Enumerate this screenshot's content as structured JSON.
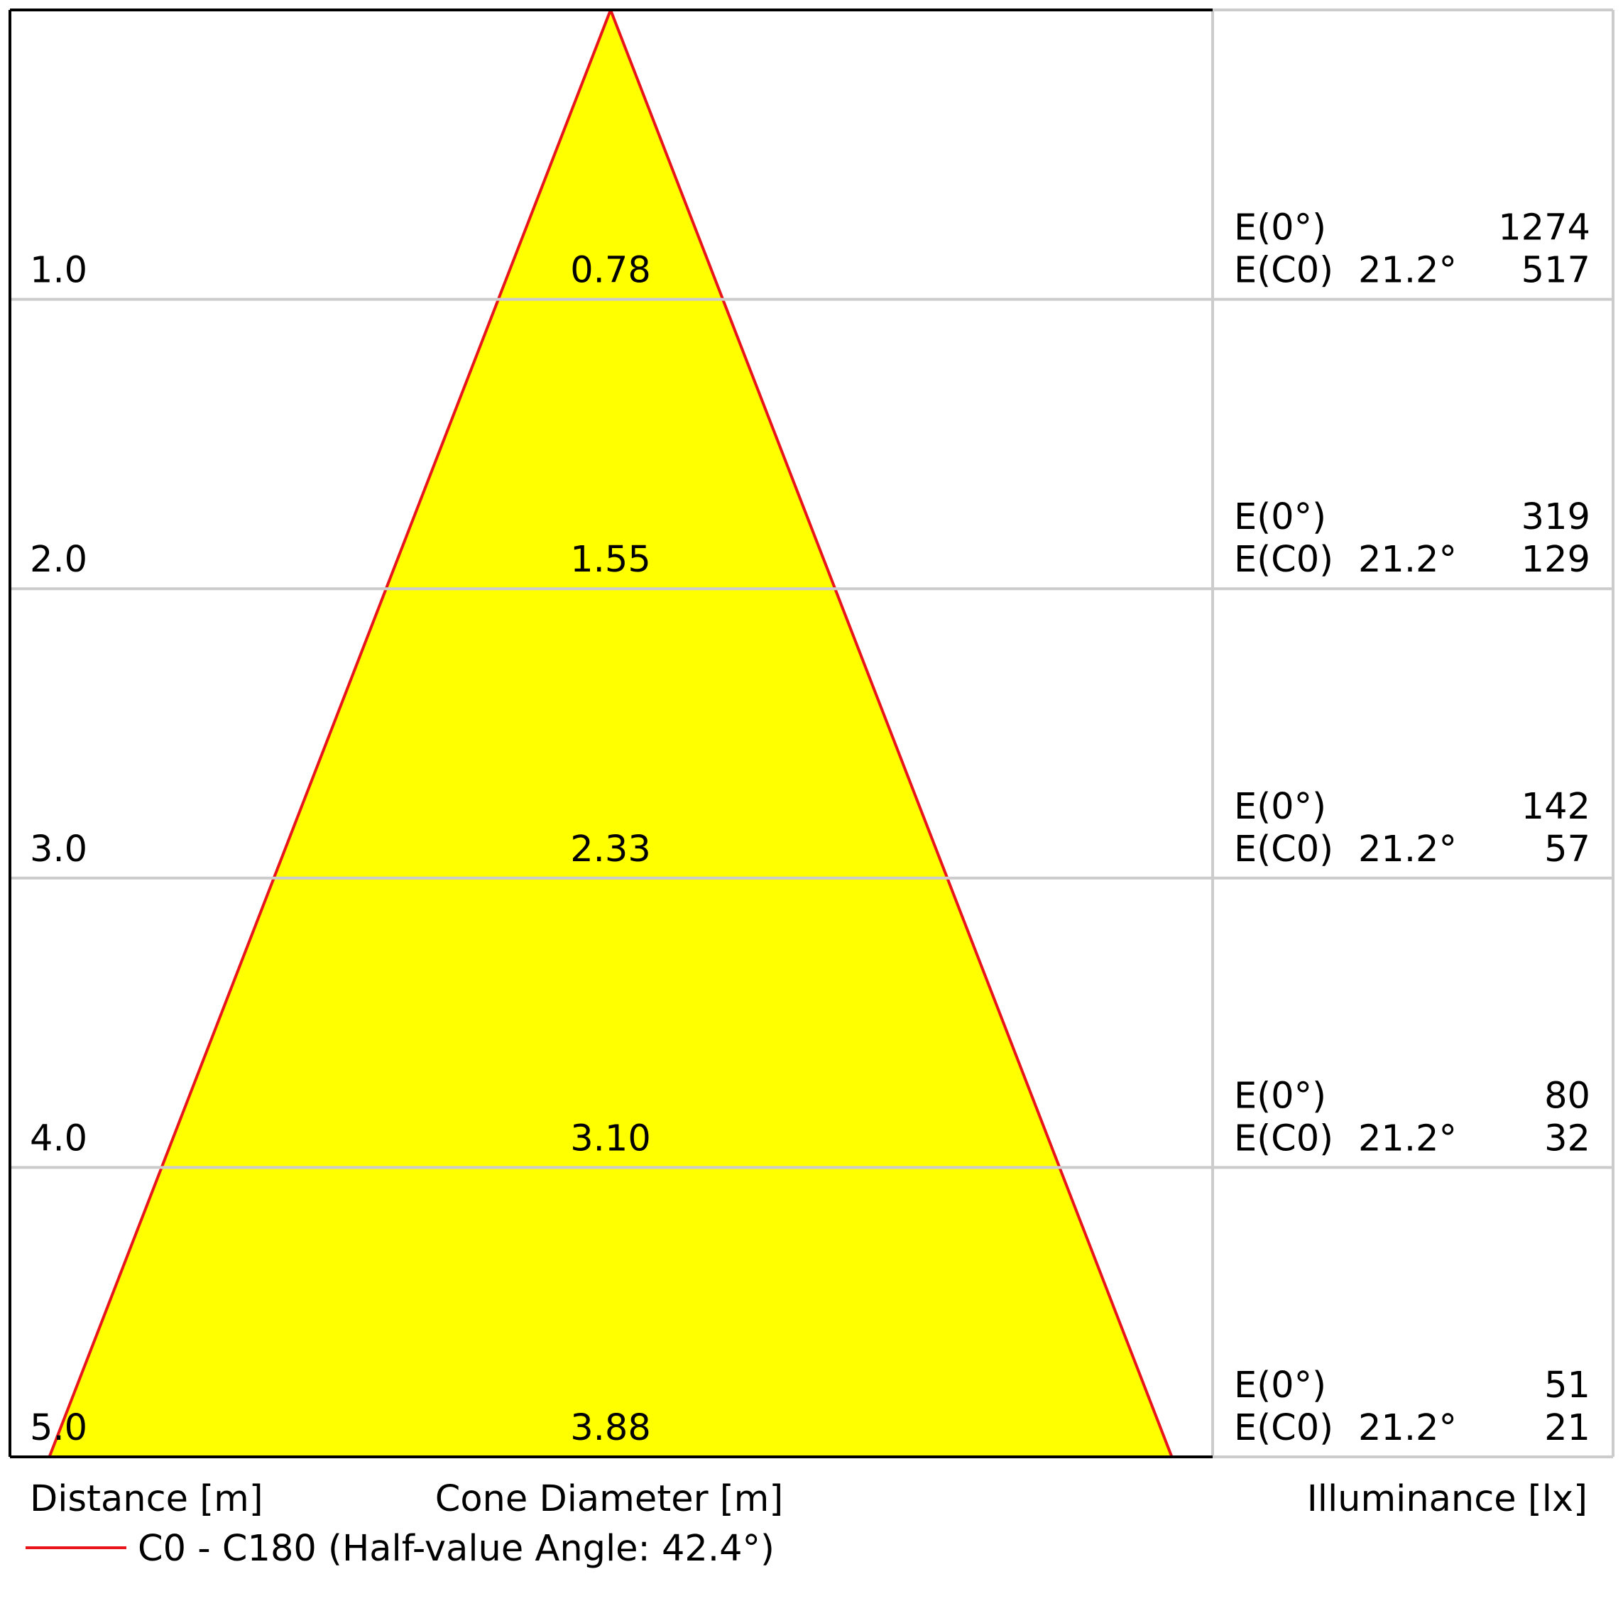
{
  "chart_data": {
    "type": "cone_diagram",
    "distance_label": "Distance [m]",
    "diameter_label": "Cone Diameter [m]",
    "illuminance_label": "Illuminance [lx]",
    "legend": {
      "text": "C0 - C180 (Half-value Angle: 42.4°)",
      "color": "#e8161b"
    },
    "fill_color": "#ffff00",
    "half_value_angle_deg": 42.4,
    "rows": [
      {
        "distance": "1.0",
        "d": 1.0,
        "diameter": "0.78",
        "e0_label": "E(0°)",
        "e0": "1274",
        "ec_label": "E(C0)",
        "ec_angle": "21.2°",
        "ec": "517"
      },
      {
        "distance": "2.0",
        "d": 2.0,
        "diameter": "1.55",
        "e0_label": "E(0°)",
        "e0": "319",
        "ec_label": "E(C0)",
        "ec_angle": "21.2°",
        "ec": "129"
      },
      {
        "distance": "3.0",
        "d": 3.0,
        "diameter": "2.33",
        "e0_label": "E(0°)",
        "e0": "142",
        "ec_label": "E(C0)",
        "ec_angle": "21.2°",
        "ec": "57"
      },
      {
        "distance": "4.0",
        "d": 4.0,
        "diameter": "3.10",
        "e0_label": "E(0°)",
        "e0": "80",
        "ec_label": "E(C0)",
        "ec_angle": "21.2°",
        "ec": "32"
      },
      {
        "distance": "5.0",
        "d": 5.0,
        "diameter": "3.88",
        "e0_label": "E(0°)",
        "e0": "51",
        "ec_label": "E(C0)",
        "ec_angle": "21.2°",
        "ec": "21"
      }
    ]
  }
}
